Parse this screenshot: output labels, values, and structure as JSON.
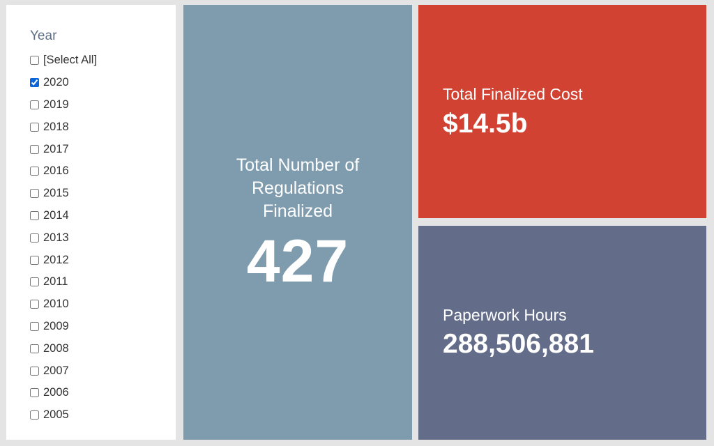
{
  "filter": {
    "title": "Year",
    "items": [
      {
        "label": "[Select All]",
        "checked": false
      },
      {
        "label": "2020",
        "checked": true
      },
      {
        "label": "2019",
        "checked": false
      },
      {
        "label": "2018",
        "checked": false
      },
      {
        "label": "2017",
        "checked": false
      },
      {
        "label": "2016",
        "checked": false
      },
      {
        "label": "2015",
        "checked": false
      },
      {
        "label": "2014",
        "checked": false
      },
      {
        "label": "2013",
        "checked": false
      },
      {
        "label": "2012",
        "checked": false
      },
      {
        "label": "2011",
        "checked": false
      },
      {
        "label": "2010",
        "checked": false
      },
      {
        "label": "2009",
        "checked": false
      },
      {
        "label": "2008",
        "checked": false
      },
      {
        "label": "2007",
        "checked": false
      },
      {
        "label": "2006",
        "checked": false
      },
      {
        "label": "2005",
        "checked": false
      }
    ]
  },
  "regulations": {
    "label_lines": [
      "Total Number of",
      "Regulations",
      "Finalized"
    ],
    "value": "427"
  },
  "cost": {
    "label": "Total Finalized Cost",
    "value": "$14.5b"
  },
  "hours": {
    "label": "Paperwork Hours",
    "value": "288,506,881"
  },
  "colors": {
    "regulations_tile": "#7f9caf",
    "cost_tile": "#d14232",
    "hours_tile": "#636d89"
  }
}
